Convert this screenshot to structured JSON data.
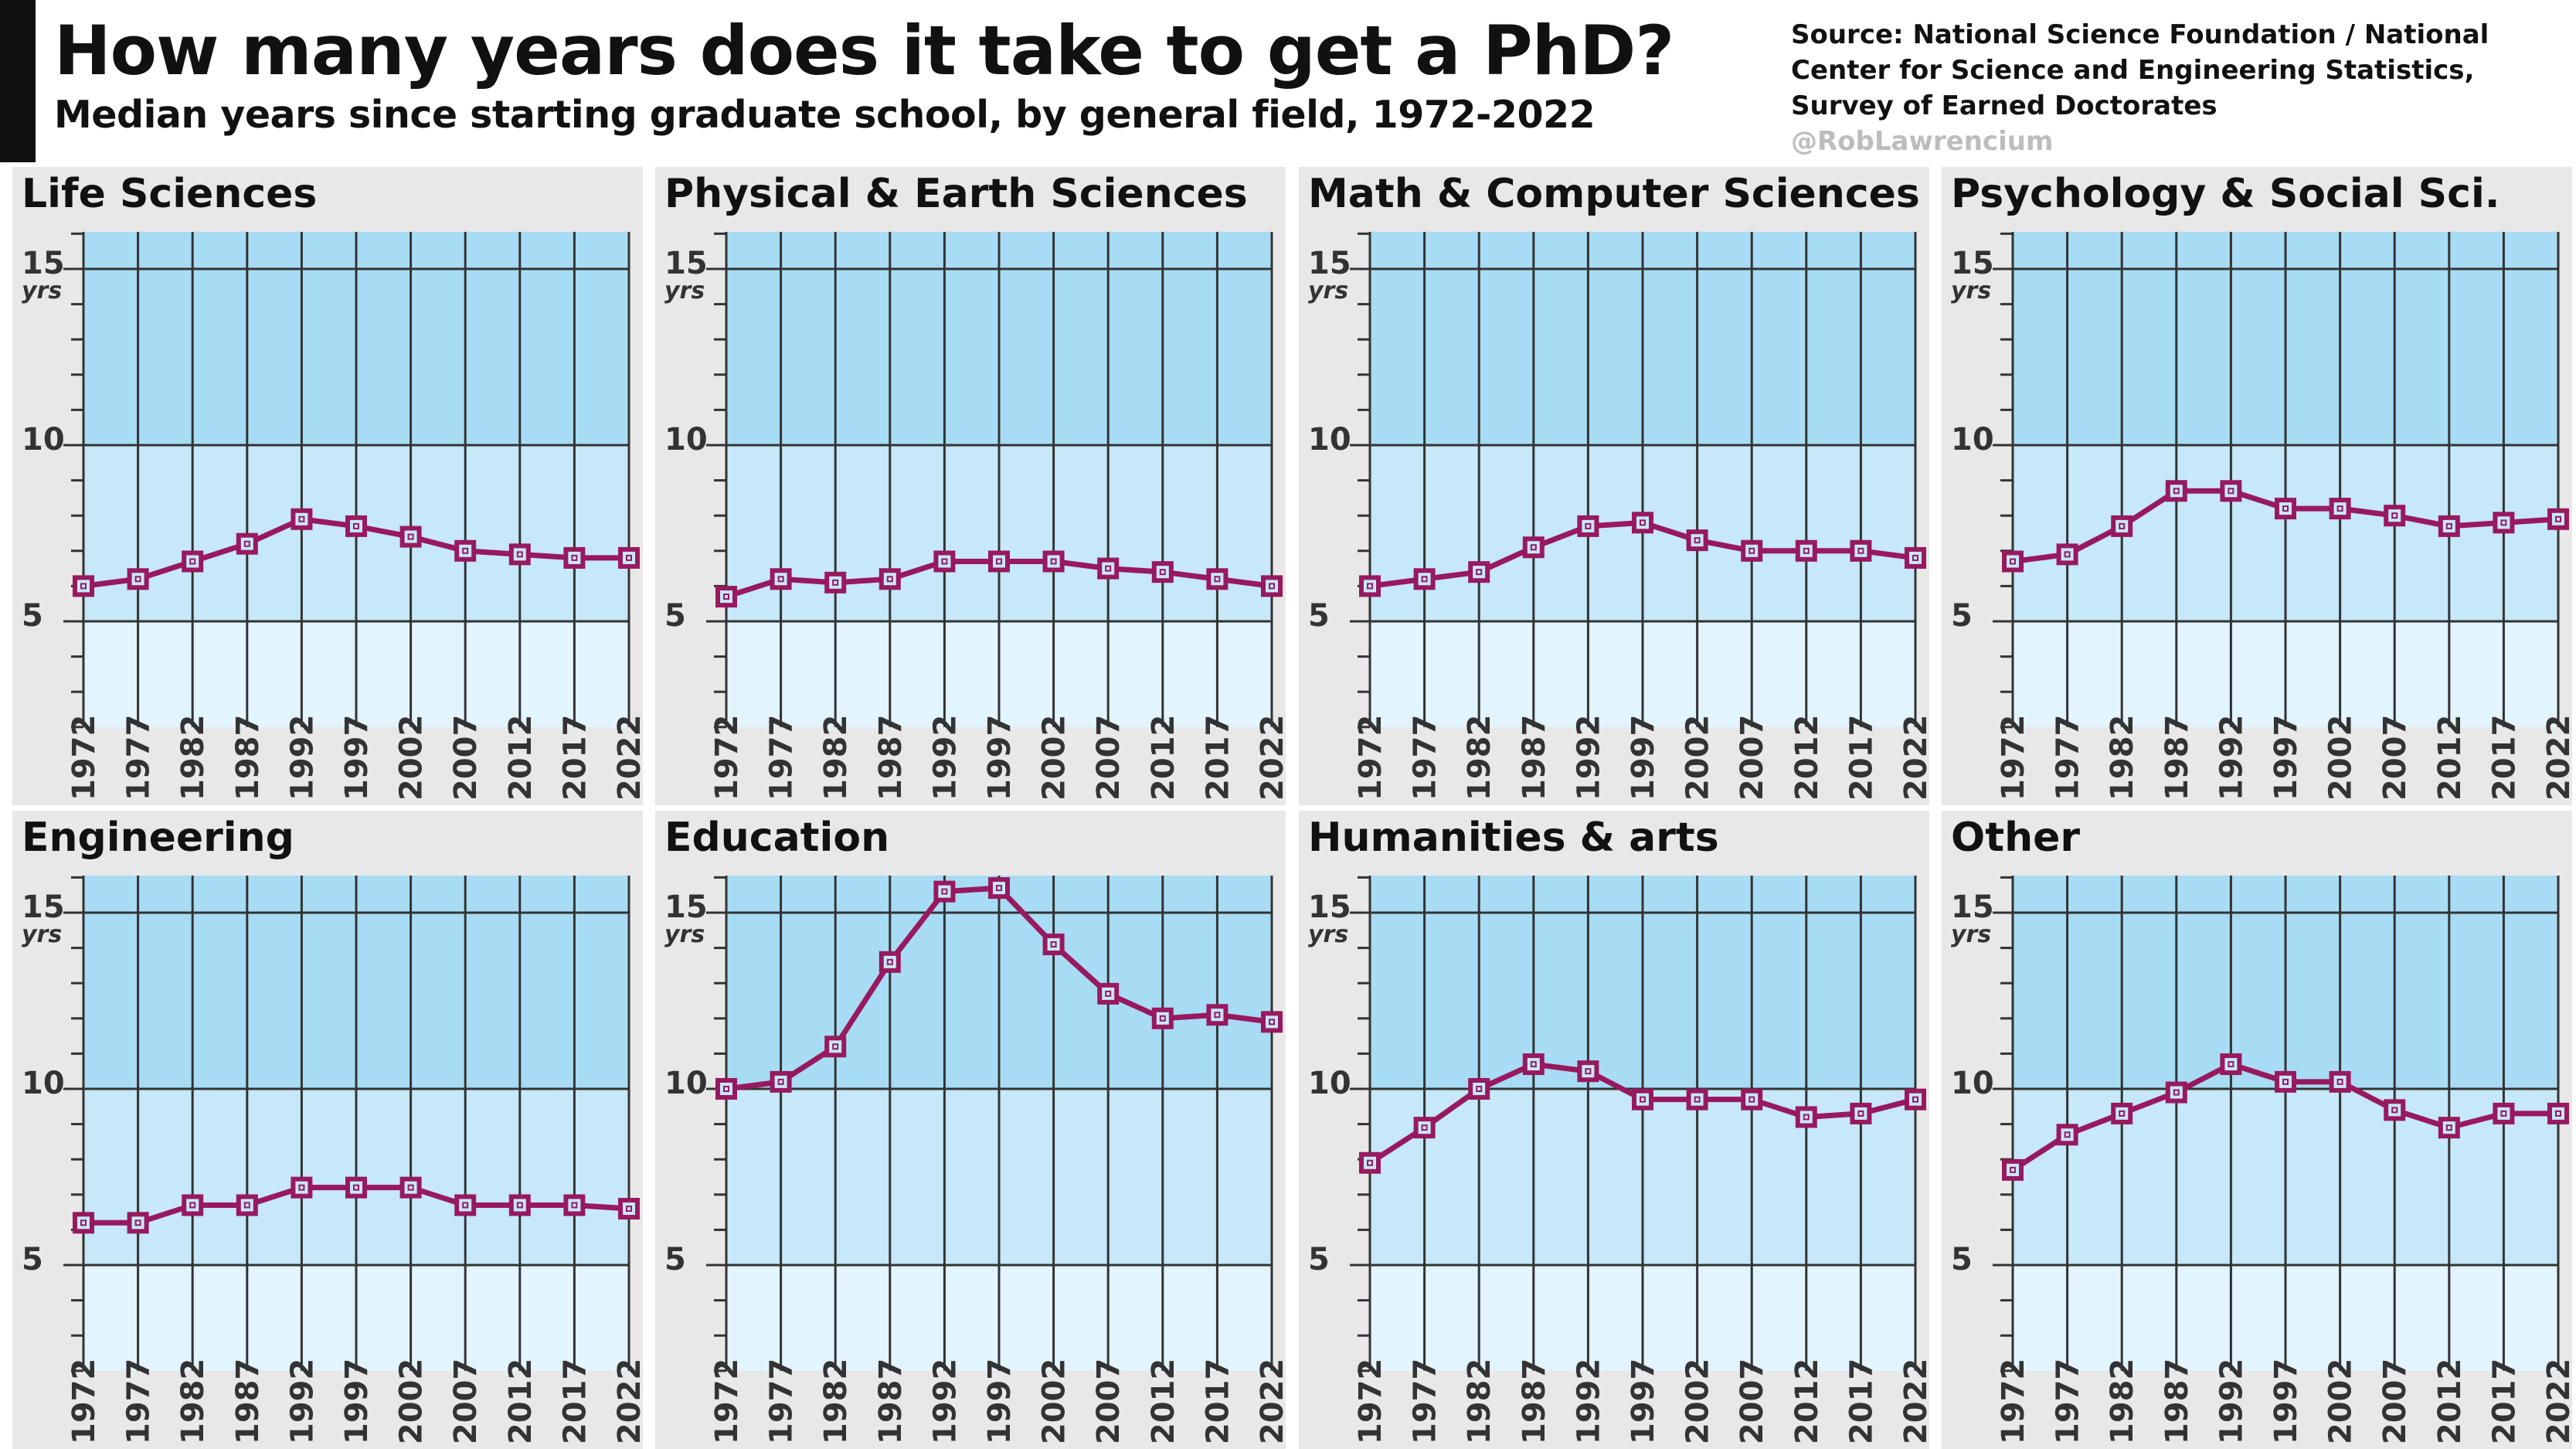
{
  "header": {
    "title": "How many years does it take to get a PhD?",
    "subtitle": "Median years since starting graduate school, by general field, 1972-2022",
    "source_lines": [
      "Source: National Science Foundation / National",
      "Center for Science and Engineering Statistics,",
      "Survey of Earned Doctorates"
    ],
    "handle": "@RobLawrencium"
  },
  "colors": {
    "panel_bg": "#e8e8e8",
    "band_high": "#a8dcf5",
    "band_mid": "#c6e8f9",
    "band_low": "#e2f4fd",
    "line": "#98195e",
    "grid": "#333333",
    "tick_text": "#333333"
  },
  "chart_data": [
    {
      "type": "line",
      "title": "Life Sciences",
      "unit_label": "yrs",
      "x": [
        "1972",
        "1977",
        "1982",
        "1987",
        "1992",
        "1997",
        "2002",
        "2007",
        "2012",
        "2017",
        "2022"
      ],
      "values": [
        6.0,
        6.2,
        6.7,
        7.2,
        7.9,
        7.7,
        7.4,
        7.0,
        6.9,
        6.8,
        6.8
      ],
      "yticks": [
        "5",
        "10",
        "15"
      ],
      "ylim": [
        2,
        16
      ]
    },
    {
      "type": "line",
      "title": "Physical & Earth Sciences",
      "unit_label": "yrs",
      "x": [
        "1972",
        "1977",
        "1982",
        "1987",
        "1992",
        "1997",
        "2002",
        "2007",
        "2012",
        "2017",
        "2022"
      ],
      "values": [
        5.7,
        6.2,
        6.1,
        6.2,
        6.7,
        6.7,
        6.7,
        6.5,
        6.4,
        6.2,
        6.0
      ],
      "yticks": [
        "5",
        "10",
        "15"
      ],
      "ylim": [
        2,
        16
      ]
    },
    {
      "type": "line",
      "title": "Math & Computer Sciences",
      "unit_label": "yrs",
      "x": [
        "1972",
        "1977",
        "1982",
        "1987",
        "1992",
        "1997",
        "2002",
        "2007",
        "2012",
        "2017",
        "2022"
      ],
      "values": [
        6.0,
        6.2,
        6.4,
        7.1,
        7.7,
        7.8,
        7.3,
        7.0,
        7.0,
        7.0,
        6.8
      ],
      "yticks": [
        "5",
        "10",
        "15"
      ],
      "ylim": [
        2,
        16
      ]
    },
    {
      "type": "line",
      "title": "Psychology & Social Sci.",
      "unit_label": "yrs",
      "x": [
        "1972",
        "1977",
        "1982",
        "1987",
        "1992",
        "1997",
        "2002",
        "2007",
        "2012",
        "2017",
        "2022"
      ],
      "values": [
        6.7,
        6.9,
        7.7,
        8.7,
        8.7,
        8.2,
        8.2,
        8.0,
        7.7,
        7.8,
        7.9
      ],
      "yticks": [
        "5",
        "10",
        "15"
      ],
      "ylim": [
        2,
        16
      ]
    },
    {
      "type": "line",
      "title": "Engineering",
      "unit_label": "yrs",
      "x": [
        "1972",
        "1977",
        "1982",
        "1987",
        "1992",
        "1997",
        "2002",
        "2007",
        "2012",
        "2017",
        "2022"
      ],
      "values": [
        6.2,
        6.2,
        6.7,
        6.7,
        7.2,
        7.2,
        7.2,
        6.7,
        6.7,
        6.7,
        6.6
      ],
      "yticks": [
        "5",
        "10",
        "15"
      ],
      "ylim": [
        2,
        16
      ]
    },
    {
      "type": "line",
      "title": "Education",
      "unit_label": "yrs",
      "x": [
        "1972",
        "1977",
        "1982",
        "1987",
        "1992",
        "1997",
        "2002",
        "2007",
        "2012",
        "2017",
        "2022"
      ],
      "values": [
        10.0,
        10.2,
        11.2,
        13.6,
        15.6,
        15.7,
        14.1,
        12.7,
        12.0,
        12.1,
        11.9
      ],
      "yticks": [
        "5",
        "10",
        "15"
      ],
      "ylim": [
        2,
        16
      ]
    },
    {
      "type": "line",
      "title": "Humanities & arts",
      "unit_label": "yrs",
      "x": [
        "1972",
        "1977",
        "1982",
        "1987",
        "1992",
        "1997",
        "2002",
        "2007",
        "2012",
        "2017",
        "2022"
      ],
      "values": [
        7.9,
        8.9,
        10.0,
        10.7,
        10.5,
        9.7,
        9.7,
        9.7,
        9.2,
        9.3,
        9.7
      ],
      "yticks": [
        "5",
        "10",
        "15"
      ],
      "ylim": [
        2,
        16
      ]
    },
    {
      "type": "line",
      "title": "Other",
      "unit_label": "yrs",
      "x": [
        "1972",
        "1977",
        "1982",
        "1987",
        "1992",
        "1997",
        "2002",
        "2007",
        "2012",
        "2017",
        "2022"
      ],
      "values": [
        7.7,
        8.7,
        9.3,
        9.9,
        10.7,
        10.2,
        10.2,
        9.4,
        8.9,
        9.3,
        9.3
      ],
      "yticks": [
        "5",
        "10",
        "15"
      ],
      "ylim": [
        2,
        16
      ]
    }
  ]
}
